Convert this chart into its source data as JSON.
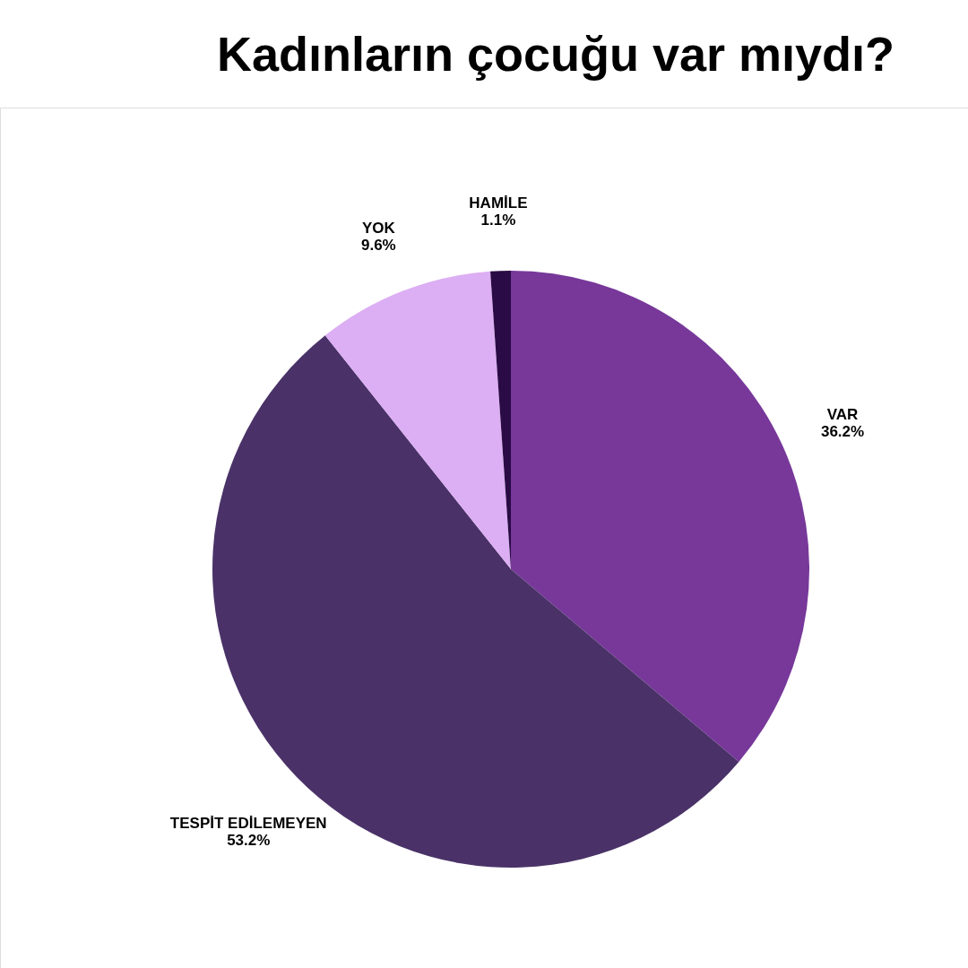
{
  "chart_data": {
    "type": "pie",
    "title": "Kadınların çocuğu var mıydı?",
    "categories": [
      "VAR",
      "TESPİT EDİLEMEYEN",
      "YOK",
      "HAMİLE"
    ],
    "values": [
      36.2,
      53.2,
      9.6,
      1.1
    ],
    "value_labels": [
      "36.2%",
      "53.2%",
      "9.6%",
      "1.1%"
    ],
    "colors": [
      "#77389a",
      "#4a3268",
      "#dcaef3",
      "#2a0b45"
    ],
    "legend": false
  }
}
